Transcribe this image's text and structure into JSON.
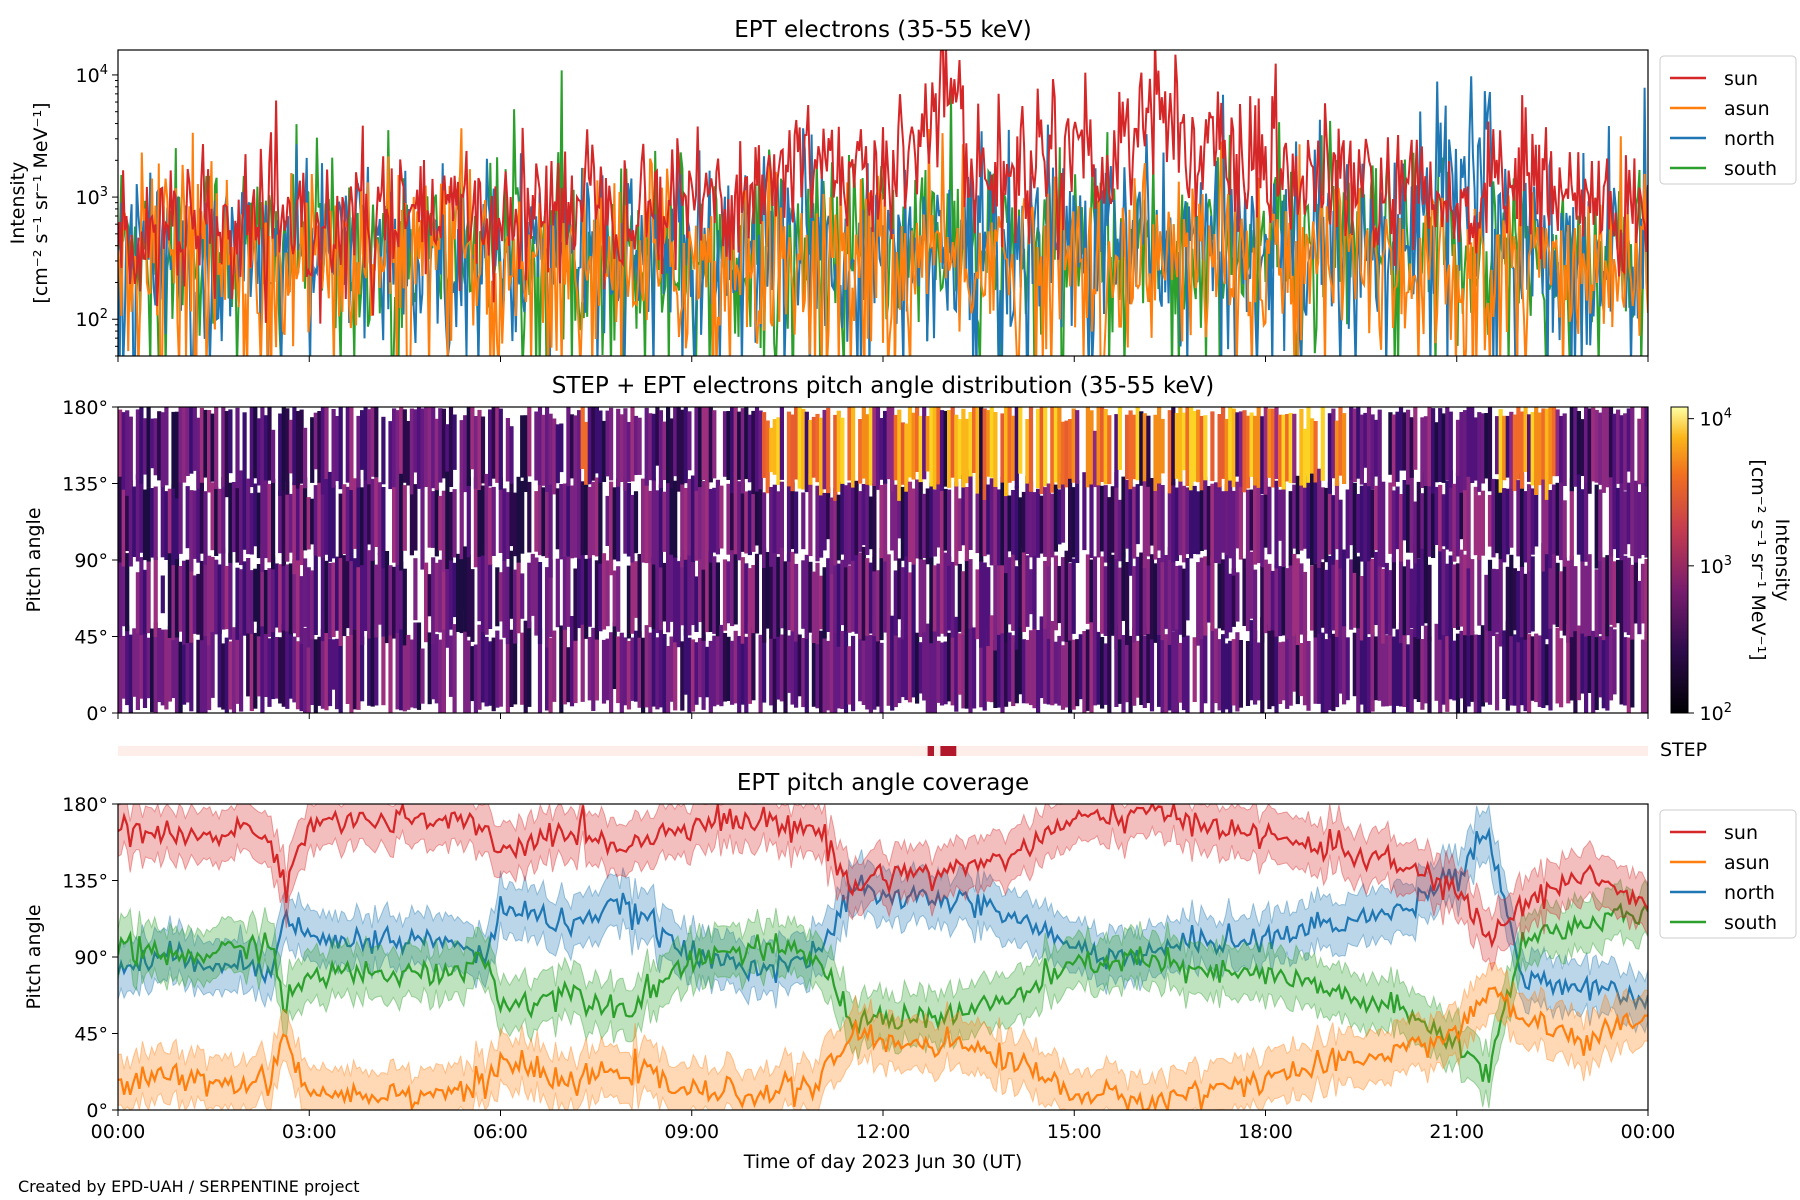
{
  "credit": "Created by EPD-UAH / SERPENTINE project",
  "colors": {
    "sun": "#d62728",
    "asun": "#ff7f0e",
    "north": "#1f77b4",
    "south": "#2ca02c",
    "step_bar": "#b2182b",
    "step_bg": "#fdeeea"
  },
  "chart_data": [
    {
      "type": "line",
      "title": "EPT electrons (35-55 keV)",
      "ylabel_line1": "Intensity",
      "ylabel_line2": "[cm⁻² s⁻¹ sr⁻¹ MeV⁻¹]",
      "yscale": "log",
      "ylim": [
        50,
        16000
      ],
      "y_ticks": [
        {
          "v": 100,
          "b": "10",
          "e": "2"
        },
        {
          "v": 1000,
          "b": "10",
          "e": "3"
        },
        {
          "v": 10000,
          "b": "10",
          "e": "4"
        }
      ],
      "x_hours_range": [
        0,
        24
      ],
      "legend_position": "right",
      "series": [
        {
          "name": "sun",
          "color": "#d62728",
          "x": [
            0,
            1,
            2,
            3,
            4,
            5,
            6,
            7,
            7.2,
            8,
            9,
            10,
            10.8,
            11,
            11.5,
            12,
            12.6,
            13,
            13.3,
            14,
            14.5,
            15,
            15.5,
            16,
            16.2,
            17,
            18,
            19,
            20,
            21,
            22,
            23,
            24
          ],
          "values": [
            500,
            500,
            500,
            550,
            600,
            650,
            700,
            800,
            1300,
            900,
            1000,
            1100,
            2000,
            2500,
            1500,
            1000,
            4000,
            9000,
            2000,
            1200,
            2500,
            3000,
            1200,
            5000,
            6000,
            2000,
            1500,
            1300,
            1000,
            700,
            1500,
            900,
            600
          ]
        },
        {
          "name": "asun",
          "color": "#ff7f0e",
          "x": [
            0,
            2,
            4,
            6,
            8,
            10,
            12,
            14,
            16,
            18,
            20,
            22,
            24
          ],
          "values": [
            400,
            300,
            300,
            300,
            300,
            300,
            300,
            300,
            300,
            300,
            300,
            250,
            300
          ]
        },
        {
          "name": "north",
          "color": "#1f77b4",
          "x": [
            0,
            2,
            4,
            6,
            8,
            10,
            12,
            14,
            16,
            18,
            20,
            21.2,
            22,
            23,
            24
          ],
          "values": [
            400,
            350,
            350,
            350,
            350,
            350,
            400,
            400,
            400,
            400,
            400,
            2500,
            600,
            400,
            400
          ]
        },
        {
          "name": "south",
          "color": "#2ca02c",
          "x": [
            0,
            2,
            4,
            6,
            8,
            10,
            12,
            14,
            16,
            18,
            20,
            22,
            24
          ],
          "values": [
            450,
            400,
            380,
            380,
            400,
            400,
            400,
            400,
            400,
            400,
            400,
            350,
            350
          ]
        }
      ]
    },
    {
      "type": "heatmap",
      "title": "STEP + EPT electrons pitch angle distribution (35-55 keV)",
      "ylabel": "Pitch angle",
      "y_ticks": [
        "0°",
        "45°",
        "90°",
        "135°",
        "180°"
      ],
      "ylim": [
        0,
        180
      ],
      "colorbar": {
        "label_line1": "Intensity",
        "label_line2": "[cm⁻² s⁻¹ sr⁻¹ MeV⁻¹]",
        "scale": "log",
        "range": [
          100,
          12000
        ],
        "ticks": [
          {
            "v": 100,
            "b": "10",
            "e": "2"
          },
          {
            "v": 1000,
            "b": "10",
            "e": "3"
          },
          {
            "v": 10000,
            "b": "10",
            "e": "4"
          }
        ]
      },
      "high_intensity_times_hours": [
        9,
        10.8,
        12.5,
        13.0,
        15.0,
        16.0,
        17.5,
        20.2,
        21.5
      ]
    },
    {
      "type": "bar",
      "label": "STEP",
      "active_hours": [
        [
          12.7,
          12.8
        ],
        [
          12.9,
          13.15
        ]
      ]
    },
    {
      "type": "area",
      "title": "EPT pitch angle coverage",
      "ylabel": "Pitch angle",
      "xlabel": "Time of day 2023 Jun 30 (UT)",
      "x_ticks": [
        "00:00",
        "03:00",
        "06:00",
        "09:00",
        "12:00",
        "15:00",
        "18:00",
        "21:00",
        "00:00"
      ],
      "y_ticks": [
        "0°",
        "45°",
        "90°",
        "135°",
        "180°"
      ],
      "ylim": [
        0,
        180
      ],
      "legend_position": "right",
      "series": [
        {
          "name": "sun",
          "color": "#d62728",
          "x": [
            0,
            1,
            2,
            2.4,
            2.6,
            3,
            4,
            5,
            5.8,
            6,
            7,
            8,
            9,
            10,
            11,
            11.5,
            12,
            13,
            14,
            15,
            16,
            17,
            18,
            19,
            20,
            21,
            21.5,
            22,
            23,
            24
          ],
          "values": [
            165,
            160,
            165,
            160,
            130,
            170,
            170,
            170,
            165,
            150,
            165,
            155,
            170,
            170,
            165,
            130,
            140,
            140,
            150,
            170,
            175,
            170,
            160,
            155,
            145,
            130,
            100,
            120,
            140,
            120
          ]
        },
        {
          "name": "asun",
          "color": "#ff7f0e",
          "x": [
            0,
            1,
            2,
            2.4,
            2.6,
            3,
            4,
            5,
            5.8,
            6,
            7,
            8,
            9,
            10,
            11,
            11.5,
            12,
            13,
            14,
            15,
            16,
            17,
            18,
            19,
            20,
            21,
            21.5,
            22,
            23,
            24
          ],
          "values": [
            15,
            20,
            15,
            20,
            45,
            10,
            10,
            10,
            15,
            30,
            15,
            25,
            10,
            10,
            15,
            45,
            40,
            40,
            30,
            10,
            5,
            10,
            20,
            25,
            35,
            45,
            70,
            55,
            40,
            55
          ]
        },
        {
          "name": "north",
          "color": "#1f77b4",
          "x": [
            0,
            1,
            2,
            2.4,
            2.6,
            3,
            4,
            5,
            5.8,
            6,
            7,
            8,
            9,
            10,
            11,
            11.5,
            12,
            13,
            14,
            15,
            16,
            17,
            18,
            19,
            20,
            21,
            21.5,
            22,
            23,
            24
          ],
          "values": [
            85,
            90,
            85,
            80,
            120,
            100,
            100,
            100,
            90,
            120,
            110,
            120,
            90,
            85,
            90,
            130,
            125,
            125,
            115,
            95,
            90,
            100,
            100,
            110,
            115,
            140,
            165,
            80,
            70,
            65
          ]
        },
        {
          "name": "south",
          "color": "#2ca02c",
          "x": [
            0,
            1,
            2,
            2.4,
            2.6,
            3,
            4,
            5,
            5.8,
            6,
            7,
            8,
            9,
            10,
            11,
            11.5,
            12,
            13,
            14,
            15,
            16,
            17,
            18,
            19,
            20,
            21,
            21.5,
            22,
            23,
            24
          ],
          "values": [
            95,
            90,
            95,
            100,
            60,
            80,
            80,
            80,
            90,
            60,
            70,
            60,
            90,
            95,
            90,
            50,
            55,
            55,
            65,
            85,
            90,
            80,
            80,
            70,
            60,
            40,
            20,
            100,
            110,
            115
          ]
        }
      ]
    }
  ]
}
